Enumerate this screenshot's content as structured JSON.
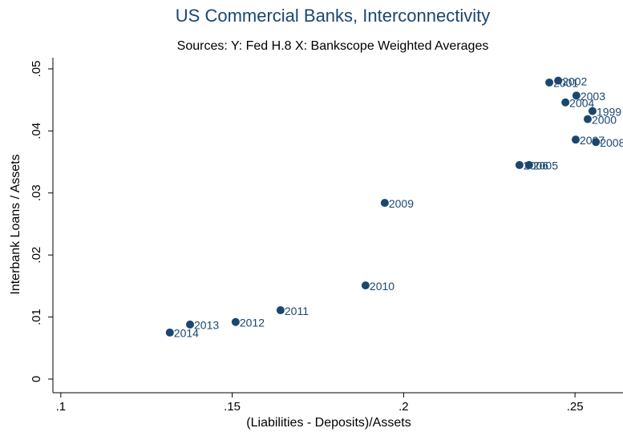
{
  "chart_data": {
    "type": "scatter",
    "title": "US Commercial Banks, Interconnectivity",
    "subtitle": "Sources: Y: Fed H.8 X: Bankscope Weighted Averages",
    "x_label": "(Liabilities - Deposits)/Assets",
    "y_label": "Interbank Loans / Assets",
    "color": "#1a476f",
    "labels": [
      "2014",
      "2013",
      "2012",
      "2011",
      "2010",
      "2009",
      "2006",
      "2005",
      "2004",
      "2001",
      "2002",
      "2003",
      "1999",
      "2000",
      "2007",
      "2008"
    ],
    "x": [
      0.1318,
      0.1377,
      0.151,
      0.1641,
      0.1889,
      0.1945,
      0.2338,
      0.2366,
      0.2472,
      0.2425,
      0.2451,
      0.2504,
      0.2551,
      0.2537,
      0.2502,
      0.2561
    ],
    "y": [
      0.0075,
      0.0088,
      0.0092,
      0.0111,
      0.0151,
      0.0284,
      0.0345,
      0.0345,
      0.0446,
      0.0478,
      0.0481,
      0.0457,
      0.0432,
      0.0419,
      0.0386,
      0.0382
    ],
    "xlim": [
      0.0977,
      0.264
    ],
    "ylim": [
      -0.0022,
      0.0518
    ],
    "xticks": [
      {
        "value": 0.1,
        "label": ".1"
      },
      {
        "value": 0.15,
        "label": ".15"
      },
      {
        "value": 0.2,
        "label": ".2"
      },
      {
        "value": 0.25,
        "label": ".25"
      }
    ],
    "yticks": [
      0,
      {
        "value": 0.01,
        "label": ".01"
      },
      {
        "value": 0.02,
        "label": ".02"
      },
      {
        "value": 0.03,
        "label": ".03"
      },
      {
        "value": 0.04,
        "label": ".04"
      },
      {
        "value": 0.05,
        "label": ".05"
      }
    ]
  }
}
